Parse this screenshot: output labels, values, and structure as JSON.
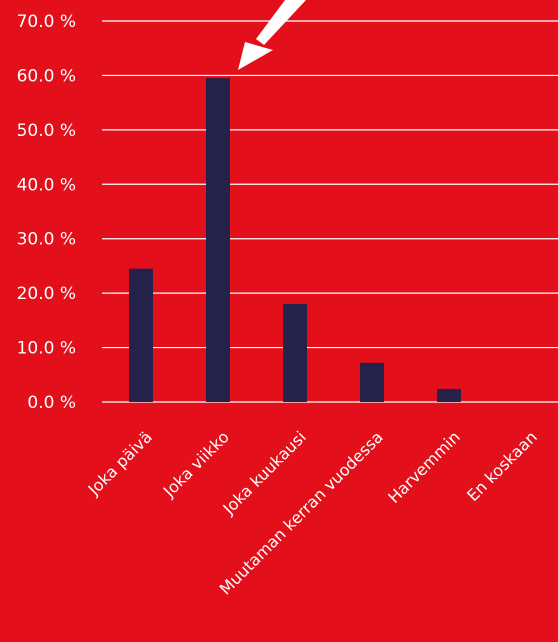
{
  "colors": {
    "background": "#e30f1b",
    "bar": "#24224a",
    "grid": "#ffffff",
    "text": "#ffffff",
    "arrow": "#ffffff"
  },
  "chart_data": {
    "type": "bar",
    "categories": [
      "Joka päivä",
      "Joka viikko",
      "Joka kuukausi",
      "Muutaman kerran vuodessa",
      "Harvemmin",
      "En koskaan"
    ],
    "values": [
      24.5,
      59.5,
      18.0,
      7.2,
      2.4,
      0.0
    ],
    "ylim": [
      0,
      70
    ],
    "yticks": [
      "0.0 %",
      "10.0 %",
      "20.0 %",
      "30.0 %",
      "40.0 %",
      "50.0 %",
      "60.0 %",
      "70.0 %"
    ],
    "title": "",
    "xlabel": "",
    "ylabel": "",
    "grid": true,
    "annotation": "white arrow pointing to Joka viikko bar"
  }
}
